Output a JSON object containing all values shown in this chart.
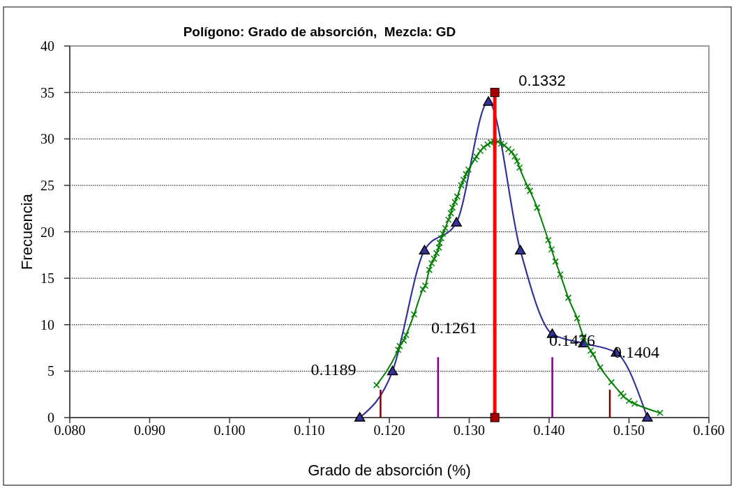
{
  "chart_data": {
    "type": "line",
    "title": "Polígono: Grado de absorción,  Mezcla: GD",
    "xlabel": "Grado de absorción (%)",
    "ylabel": "Frecuencia",
    "xlim": [
      0.08,
      0.16
    ],
    "xticks": [
      {
        "value": 0.08,
        "label": "0.080"
      },
      {
        "value": 0.09,
        "label": "0.090"
      },
      {
        "value": 0.1,
        "label": "0.100"
      },
      {
        "value": 0.11,
        "label": "0.110"
      },
      {
        "value": 0.12,
        "label": "0.120"
      },
      {
        "value": 0.13,
        "label": "0.130"
      },
      {
        "value": 0.14,
        "label": "0.140"
      },
      {
        "value": 0.15,
        "label": "0.150"
      },
      {
        "value": 0.16,
        "label": "0.160"
      }
    ],
    "ylim": [
      0,
      40
    ],
    "yticks": [
      0,
      5,
      10,
      15,
      20,
      25,
      30,
      35,
      40
    ],
    "grid": "y",
    "series": [
      {
        "color": "#333399",
        "marker": "triangle",
        "x": [
          0.1163,
          0.1204,
          0.1244,
          0.1284,
          0.1324,
          0.1364,
          0.1404,
          0.1443,
          0.1484,
          0.1523
        ],
        "values": [
          0,
          5,
          18,
          21,
          34,
          18,
          9,
          8,
          7,
          0
        ]
      },
      {
        "color": "#008000",
        "marker": "cross",
        "x": [
          0.1184,
          0.1211,
          0.1213,
          0.1218,
          0.1221,
          0.1231,
          0.1242,
          0.1245,
          0.125,
          0.1253,
          0.1256,
          0.1259,
          0.1262,
          0.1263,
          0.1265,
          0.1267,
          0.127,
          0.1274,
          0.1277,
          0.1279,
          0.1282,
          0.1285,
          0.129,
          0.1293,
          0.1296,
          0.1299,
          0.1307,
          0.1309,
          0.1314,
          0.1318,
          0.1323,
          0.1327,
          0.1331,
          0.1336,
          0.134,
          0.1344,
          0.1349,
          0.1353,
          0.1357,
          0.136,
          0.1363,
          0.1373,
          0.1376,
          0.1385,
          0.1399,
          0.1403,
          0.1408,
          0.1414,
          0.1424,
          0.1435,
          0.1443,
          0.1452,
          0.1455,
          0.1464,
          0.1478,
          0.149,
          0.1493,
          0.15,
          0.1507,
          0.1539
        ],
        "values": [
          3.5,
          7.3,
          7.7,
          8.3,
          8.9,
          11.1,
          13.8,
          14.2,
          15.9,
          16.6,
          17.1,
          17.7,
          18.3,
          18.8,
          19.3,
          19.8,
          20.4,
          21.3,
          22.0,
          22.6,
          23.2,
          23.8,
          25.0,
          25.6,
          26.2,
          26.7,
          27.8,
          28.1,
          28.7,
          29.1,
          29.4,
          29.6,
          29.7,
          29.7,
          29.5,
          29.3,
          28.9,
          28.6,
          28.1,
          27.6,
          26.9,
          24.9,
          24.4,
          22.6,
          19.1,
          18.1,
          16.8,
          15.4,
          12.9,
          10.7,
          8.7,
          7.2,
          6.8,
          5.4,
          3.8,
          2.6,
          2.3,
          1.8,
          1.5,
          0.5
        ]
      },
      {
        "color": "#ff0000",
        "marker": "square",
        "x": [
          0.1332,
          0.1332
        ],
        "values": [
          0,
          35
        ]
      },
      {
        "color": "#800000",
        "marker": "none",
        "x": [
          0.1189,
          0.1189
        ],
        "values": [
          0,
          3
        ]
      },
      {
        "color": "#800080",
        "marker": "none",
        "x": [
          0.1261,
          0.1261
        ],
        "values": [
          0,
          6.5
        ]
      },
      {
        "color": "#800080",
        "marker": "none",
        "x": [
          0.1404,
          0.1404
        ],
        "values": [
          0,
          6.5
        ]
      },
      {
        "color": "#800000",
        "marker": "none",
        "x": [
          0.1476,
          0.1476
        ],
        "values": [
          0,
          3
        ]
      }
    ],
    "annotations": [
      "0.1332",
      "0.1261",
      "0.1189",
      "0.1476",
      "0.1404"
    ]
  }
}
